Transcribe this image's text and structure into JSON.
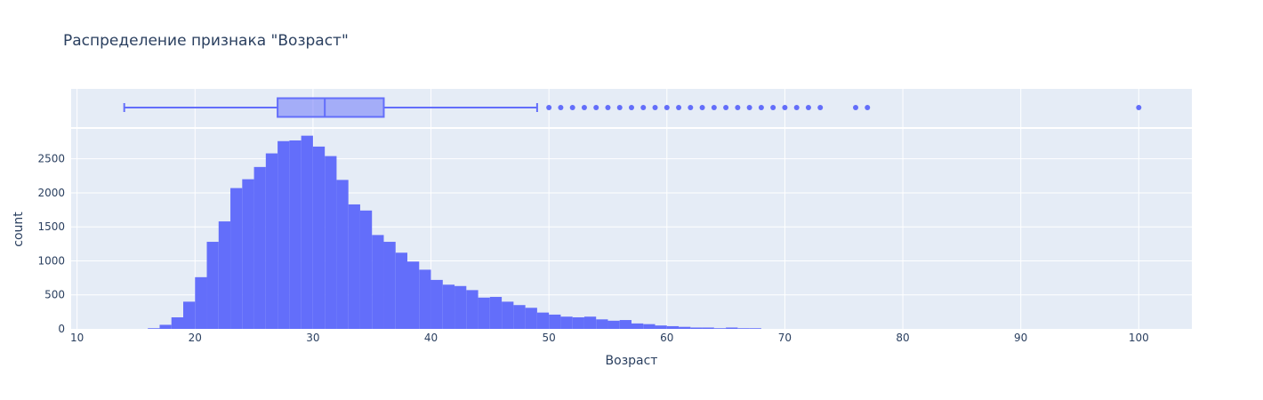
{
  "chart_data": {
    "type": "histogram",
    "title": "Распределение признака \"Возраст\"",
    "xlabel": "Возраст",
    "ylabel": "count",
    "xlim": [
      9.5,
      104.5
    ],
    "ylim": [
      0,
      2940
    ],
    "x_ticks": [
      10,
      20,
      30,
      40,
      50,
      60,
      70,
      80,
      90,
      100
    ],
    "x_tick_labels": [
      "10",
      "20",
      "30",
      "40",
      "50",
      "60",
      "70",
      "80",
      "90",
      "100"
    ],
    "y_ticks": [
      0,
      500,
      1000,
      1500,
      2000,
      2500
    ],
    "y_tick_labels": [
      "0",
      "500",
      "1000",
      "1500",
      "2000",
      "2500"
    ],
    "grid": true,
    "color": "#636efa",
    "plot_bg": "#e5ecf6",
    "histogram": {
      "bin_width": 1,
      "bin_start": 16,
      "counts": [
        10,
        60,
        170,
        400,
        760,
        1280,
        1580,
        2070,
        2200,
        2380,
        2580,
        2760,
        2770,
        2840,
        2680,
        2540,
        2190,
        1830,
        1740,
        1380,
        1280,
        1120,
        990,
        870,
        720,
        650,
        630,
        570,
        460,
        470,
        400,
        350,
        310,
        240,
        210,
        180,
        170,
        180,
        140,
        120,
        130,
        80,
        70,
        50,
        40,
        30,
        20,
        20,
        10,
        20,
        10,
        10
      ]
    },
    "box": {
      "lower_fence": 14,
      "q1": 27,
      "median": 31,
      "q3": 36,
      "upper_fence": 49,
      "outliers": [
        50,
        51,
        52,
        53,
        54,
        55,
        56,
        57,
        58,
        59,
        60,
        61,
        62,
        63,
        64,
        65,
        66,
        67,
        68,
        69,
        70,
        71,
        72,
        73,
        76,
        77,
        100
      ]
    }
  }
}
